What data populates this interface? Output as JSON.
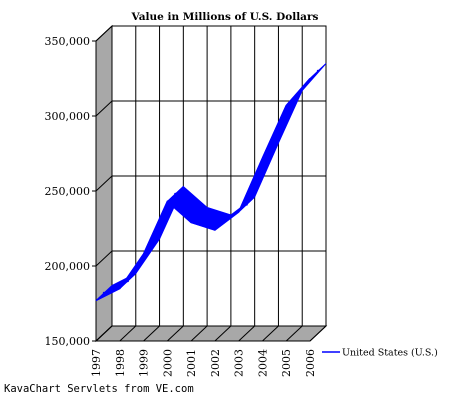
{
  "chart_data": {
    "type": "area",
    "title": "Value in Millions of U.S. Dollars",
    "xlabel": "",
    "ylabel": "",
    "categories": [
      "1997",
      "1998",
      "1999",
      "2000",
      "2001",
      "2002",
      "2003",
      "2004",
      "2005",
      "2006"
    ],
    "series": [
      {
        "name": "United States (U.S.)",
        "values": [
          177000,
          185000,
          208000,
          243000,
          229000,
          224000,
          236000,
          272000,
          307000,
          325000
        ],
        "color": "#0000ff"
      }
    ],
    "yticks": [
      "150,000",
      "200,000",
      "250,000",
      "300,000",
      "350,000"
    ],
    "ylim": [
      150000,
      350000
    ],
    "grid": true,
    "legend": "right",
    "style": "3d"
  },
  "footer": "KavaChart Servlets from VE.com"
}
